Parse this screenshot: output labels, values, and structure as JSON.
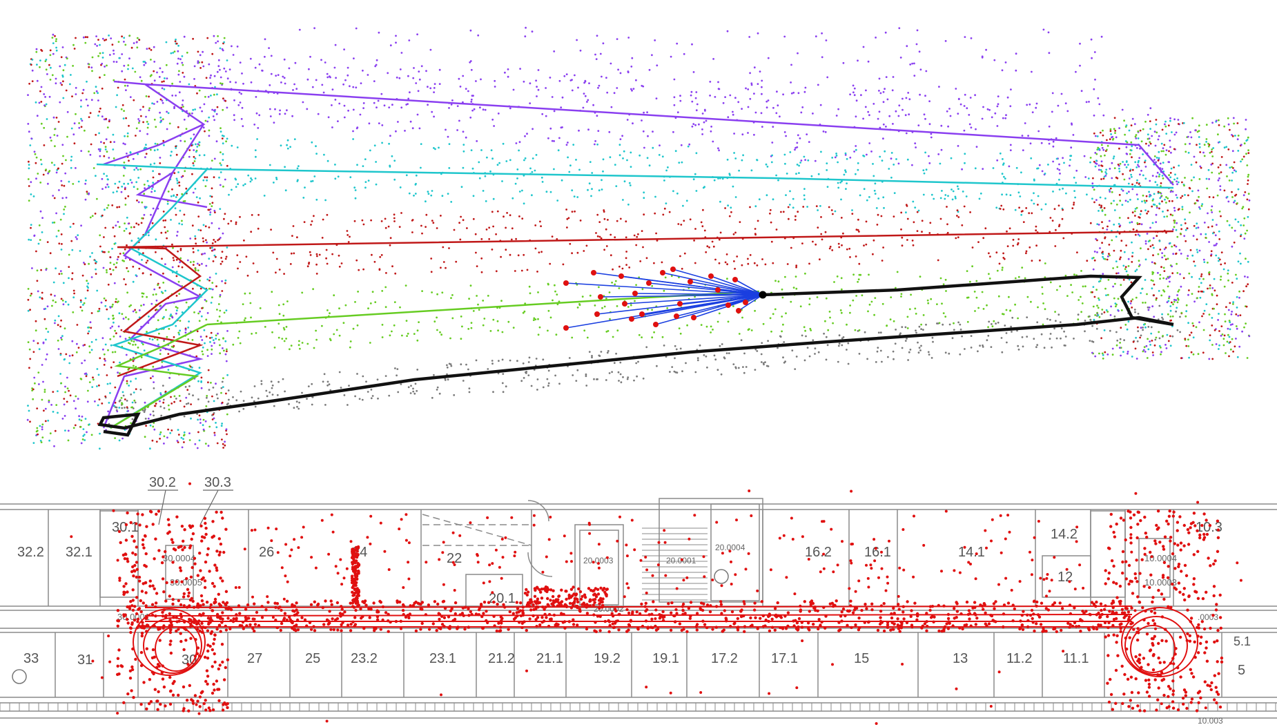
{
  "colors": {
    "purple": "#8a3ff0",
    "cyan": "#1fc6cc",
    "red": "#c01818",
    "green": "#66cc22",
    "black": "#111111",
    "blue": "#1a3fe0",
    "red_points": "#e01010",
    "floor_lines": "#8a8a8a"
  },
  "floorplan": {
    "callouts": [
      "30.2",
      "30.3"
    ],
    "rooms": {
      "r32_2": "32.2",
      "r32_1": "32.1",
      "r30_1": "30.1",
      "r26": "26",
      "r24": "24",
      "r22": "22",
      "r20_1": "20.1",
      "r16_2": "16.2",
      "r16_1": "16.1",
      "r14_1": "14.1",
      "r14_2": "14.2",
      "r12": "12",
      "r10_3": "10.3",
      "r33": "33",
      "r31": "31",
      "r30": "30",
      "r27": "27",
      "r25": "25",
      "r23_2": "23.2",
      "r23_1": "23.1",
      "r21_2": "21.2",
      "r21_1": "21.1",
      "r19_2": "19.2",
      "r19_1": "19.1",
      "r17_2": "17.2",
      "r17_1": "17.1",
      "r15": "15",
      "r13": "13",
      "r11_2": "11.2",
      "r11_1": "11.1",
      "r5_1": "5.1",
      "r5": "5"
    },
    "small_labels": {
      "s30_0004": "30.0004",
      "s30_0005": "30.0005",
      "s30_0001": "30.0001",
      "s20_0003": "20.0003",
      "s20_0001": "20.0001",
      "s20_0004": "20.0004",
      "s20_0002": "20.0002",
      "s10_0004": "10.0004",
      "s10_0003": "10.0003",
      "s10_0003b": "10.003",
      "s0003": ".0003"
    }
  }
}
